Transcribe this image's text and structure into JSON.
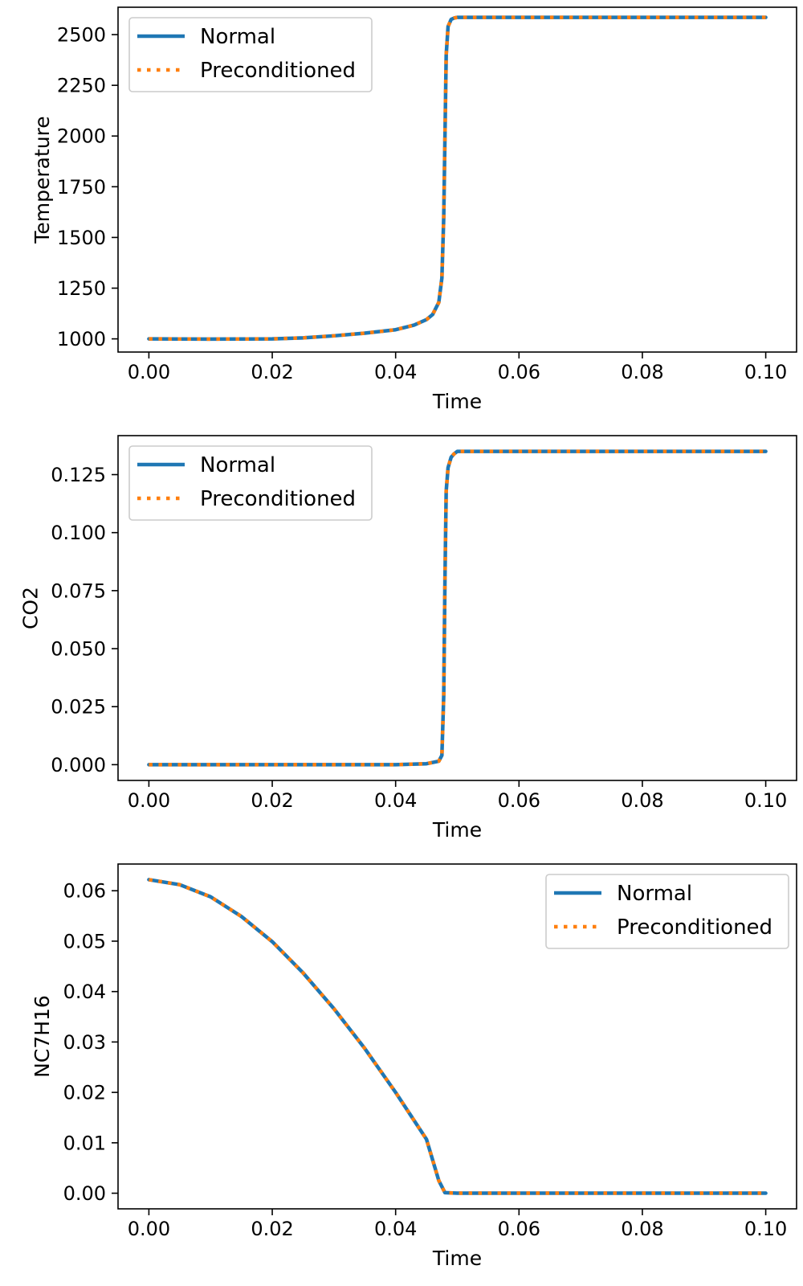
{
  "colors": {
    "normal": "#1f77b4",
    "preconditioned": "#ff7f0e",
    "axes": "#000000",
    "legend_border": "#cccccc"
  },
  "chart_data": [
    {
      "type": "line",
      "xlabel": "Time",
      "ylabel": "Temperature",
      "xlim": [
        -0.005,
        0.105
      ],
      "ylim": [
        935,
        2635
      ],
      "xticks": [
        0.0,
        0.02,
        0.04,
        0.06,
        0.08,
        0.1
      ],
      "xtick_labels": [
        "0.00",
        "0.02",
        "0.04",
        "0.06",
        "0.08",
        "0.10"
      ],
      "yticks": [
        1000,
        1250,
        1500,
        1750,
        2000,
        2250,
        2500
      ],
      "ytick_labels": [
        "1000",
        "1250",
        "1500",
        "1750",
        "2000",
        "2250",
        "2500"
      ],
      "legend_position": "upper-left",
      "legend": [
        "Normal",
        "Preconditioned"
      ],
      "grid": false,
      "series": [
        {
          "name": "Normal",
          "style": "solid",
          "x": [
            0.0,
            0.01,
            0.02,
            0.025,
            0.03,
            0.035,
            0.04,
            0.043,
            0.045,
            0.046,
            0.047,
            0.0475,
            0.0478,
            0.048,
            0.0482,
            0.0485,
            0.049,
            0.0495,
            0.05,
            0.052,
            0.06,
            0.08,
            0.1
          ],
          "y": [
            1000,
            999,
            1000,
            1005,
            1015,
            1028,
            1045,
            1068,
            1095,
            1120,
            1180,
            1300,
            1600,
            2000,
            2400,
            2540,
            2575,
            2582,
            2585,
            2585,
            2585,
            2585,
            2585
          ]
        },
        {
          "name": "Preconditioned",
          "style": "dotted",
          "x": [
            0.0,
            0.01,
            0.02,
            0.025,
            0.03,
            0.035,
            0.04,
            0.043,
            0.045,
            0.046,
            0.047,
            0.0475,
            0.0478,
            0.048,
            0.0482,
            0.0485,
            0.049,
            0.0495,
            0.05,
            0.052,
            0.06,
            0.08,
            0.1
          ],
          "y": [
            1000,
            999,
            1000,
            1005,
            1015,
            1028,
            1045,
            1068,
            1095,
            1120,
            1180,
            1300,
            1600,
            2000,
            2400,
            2540,
            2575,
            2582,
            2585,
            2585,
            2585,
            2585,
            2585
          ]
        }
      ]
    },
    {
      "type": "line",
      "xlabel": "Time",
      "ylabel": "CO2",
      "xlim": [
        -0.005,
        0.105
      ],
      "ylim": [
        -0.0068,
        0.1418
      ],
      "xticks": [
        0.0,
        0.02,
        0.04,
        0.06,
        0.08,
        0.1
      ],
      "xtick_labels": [
        "0.00",
        "0.02",
        "0.04",
        "0.06",
        "0.08",
        "0.10"
      ],
      "yticks": [
        0.0,
        0.025,
        0.05,
        0.075,
        0.1,
        0.125
      ],
      "ytick_labels": [
        "0.000",
        "0.025",
        "0.050",
        "0.075",
        "0.100",
        "0.125"
      ],
      "legend_position": "upper-left",
      "legend": [
        "Normal",
        "Preconditioned"
      ],
      "grid": false,
      "series": [
        {
          "name": "Normal",
          "style": "solid",
          "x": [
            0.0,
            0.02,
            0.04,
            0.045,
            0.047,
            0.0475,
            0.0478,
            0.048,
            0.0482,
            0.0485,
            0.049,
            0.0495,
            0.05,
            0.052,
            0.06,
            0.08,
            0.1
          ],
          "y": [
            0.0,
            0.0,
            0.0,
            0.0004,
            0.0015,
            0.004,
            0.03,
            0.08,
            0.118,
            0.128,
            0.1325,
            0.134,
            0.135,
            0.135,
            0.135,
            0.135,
            0.135
          ]
        },
        {
          "name": "Preconditioned",
          "style": "dotted",
          "x": [
            0.0,
            0.02,
            0.04,
            0.045,
            0.047,
            0.0475,
            0.0478,
            0.048,
            0.0482,
            0.0485,
            0.049,
            0.0495,
            0.05,
            0.052,
            0.06,
            0.08,
            0.1
          ],
          "y": [
            0.0,
            0.0,
            0.0,
            0.0004,
            0.0015,
            0.004,
            0.03,
            0.08,
            0.118,
            0.128,
            0.1325,
            0.134,
            0.135,
            0.135,
            0.135,
            0.135,
            0.135
          ]
        }
      ]
    },
    {
      "type": "line",
      "xlabel": "Time",
      "ylabel": "NC7H16",
      "xlim": [
        -0.005,
        0.105
      ],
      "ylim": [
        -0.0031,
        0.0653
      ],
      "xticks": [
        0.0,
        0.02,
        0.04,
        0.06,
        0.08,
        0.1
      ],
      "xtick_labels": [
        "0.00",
        "0.02",
        "0.04",
        "0.06",
        "0.08",
        "0.10"
      ],
      "yticks": [
        0.0,
        0.01,
        0.02,
        0.03,
        0.04,
        0.05,
        0.06
      ],
      "ytick_labels": [
        "0.00",
        "0.01",
        "0.02",
        "0.03",
        "0.04",
        "0.05",
        "0.06"
      ],
      "legend_position": "upper-right",
      "legend": [
        "Normal",
        "Preconditioned"
      ],
      "grid": false,
      "series": [
        {
          "name": "Normal",
          "style": "solid",
          "x": [
            0.0,
            0.005,
            0.01,
            0.015,
            0.02,
            0.025,
            0.03,
            0.035,
            0.04,
            0.045,
            0.047,
            0.048,
            0.05,
            0.06,
            0.08,
            0.1
          ],
          "y": [
            0.0622,
            0.0612,
            0.0588,
            0.0549,
            0.0499,
            0.0437,
            0.0366,
            0.0287,
            0.02,
            0.0107,
            0.0025,
            0.0001,
            0.0,
            0.0,
            0.0,
            0.0
          ]
        },
        {
          "name": "Preconditioned",
          "style": "dotted",
          "x": [
            0.0,
            0.005,
            0.01,
            0.015,
            0.02,
            0.025,
            0.03,
            0.035,
            0.04,
            0.045,
            0.047,
            0.048,
            0.05,
            0.06,
            0.08,
            0.1
          ],
          "y": [
            0.0622,
            0.0612,
            0.0588,
            0.0549,
            0.0499,
            0.0437,
            0.0366,
            0.0287,
            0.02,
            0.0107,
            0.0025,
            0.0001,
            0.0,
            0.0,
            0.0,
            0.0
          ]
        }
      ]
    }
  ]
}
